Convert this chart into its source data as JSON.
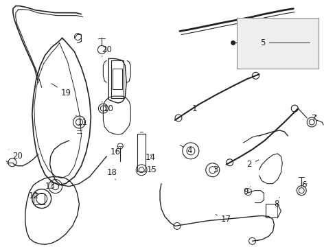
{
  "background_color": "#ffffff",
  "line_color": "#222222",
  "label_color": "#000000",
  "figsize": [
    4.89,
    3.6
  ],
  "dpi": 100,
  "font_size": 8.5
}
